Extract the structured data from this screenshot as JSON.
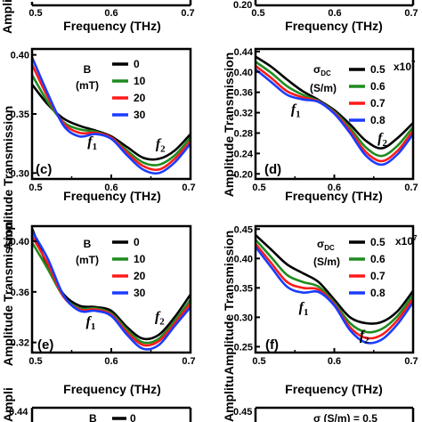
{
  "colors": {
    "black": "#000000",
    "green": "#1e8c1e",
    "red": "#ff1a1a",
    "blue": "#1a3cff"
  },
  "labels": {
    "freq_xlabel": "Frequency (THz)",
    "amp_ylabel": "Amplitude Transmission",
    "amp_ylabel_partial": "Ampli"
  },
  "chart_data": [
    {
      "panel": "top-left (cropped)",
      "type": "line",
      "xlabel": "Frequency (THz)",
      "ylabel": "Ampli",
      "xticks": [
        "0.5",
        "0.6",
        "0.7"
      ],
      "xlim": [
        0.5,
        0.7
      ]
    },
    {
      "panel": "top-right (cropped)",
      "type": "line",
      "xlabel": "Frequency (THz)",
      "ylabel": "",
      "xticks": [
        "0.5",
        "0.6",
        "0.7"
      ],
      "xlim": [
        0.5,
        0.7
      ],
      "ytick_partial": "0.20"
    },
    {
      "panel": "(c)",
      "type": "line",
      "xlabel": "Frequency (THz)",
      "ylabel": "Amplitude Transmission",
      "xticks": [
        "0.5",
        "0.6",
        "0.7"
      ],
      "yticks": [
        "0.30",
        "0.35",
        "0.40"
      ],
      "xlim": [
        0.5,
        0.7
      ],
      "ylim": [
        0.295,
        0.405
      ],
      "legend_title": [
        "B",
        "(mT)"
      ],
      "annotations": [
        {
          "text": "f",
          "sub": "1",
          "x": 0.57,
          "y": 0.323
        },
        {
          "text": "f",
          "sub": "2",
          "x": 0.656,
          "y": 0.321
        }
      ],
      "series": [
        {
          "name": "0",
          "color": "#000000",
          "x": [
            0.5,
            0.52,
            0.54,
            0.56,
            0.58,
            0.6,
            0.62,
            0.64,
            0.66,
            0.68,
            0.7
          ],
          "y": [
            0.375,
            0.358,
            0.346,
            0.34,
            0.336,
            0.331,
            0.322,
            0.313,
            0.312,
            0.319,
            0.333
          ]
        },
        {
          "name": "10",
          "color": "#1e8c1e",
          "x": [
            0.5,
            0.52,
            0.54,
            0.56,
            0.58,
            0.6,
            0.62,
            0.64,
            0.66,
            0.68,
            0.7
          ],
          "y": [
            0.383,
            0.36,
            0.343,
            0.337,
            0.335,
            0.33,
            0.319,
            0.309,
            0.307,
            0.315,
            0.33
          ]
        },
        {
          "name": "20",
          "color": "#ff1a1a",
          "x": [
            0.5,
            0.52,
            0.54,
            0.56,
            0.58,
            0.6,
            0.62,
            0.64,
            0.66,
            0.68,
            0.7
          ],
          "y": [
            0.392,
            0.364,
            0.342,
            0.334,
            0.334,
            0.33,
            0.317,
            0.306,
            0.303,
            0.312,
            0.327
          ]
        },
        {
          "name": "30",
          "color": "#1a3cff",
          "x": [
            0.5,
            0.52,
            0.54,
            0.56,
            0.58,
            0.6,
            0.62,
            0.64,
            0.66,
            0.68,
            0.7
          ],
          "y": [
            0.398,
            0.367,
            0.34,
            0.331,
            0.333,
            0.329,
            0.315,
            0.303,
            0.3,
            0.309,
            0.325
          ]
        }
      ]
    },
    {
      "panel": "(d)",
      "type": "line",
      "xlabel": "Frequency (THz)",
      "ylabel": "Amplitude Transmission",
      "xticks": [
        "0.5",
        "0.6",
        "0.7"
      ],
      "yticks": [
        "0.20",
        "0.24",
        "0.28",
        "0.32",
        "0.36",
        "0.40",
        "0.44"
      ],
      "xlim": [
        0.5,
        0.7
      ],
      "ylim": [
        0.19,
        0.445
      ],
      "legend_title": [
        "σ",
        "DC",
        "(S/m)"
      ],
      "legend_note": "x10",
      "legend_note_exp": "7",
      "annotations": [
        {
          "text": "f",
          "sub": "1",
          "x": 0.545,
          "y": 0.318
        },
        {
          "text": "f",
          "sub": "2",
          "x": 0.655,
          "y": 0.262
        }
      ],
      "series": [
        {
          "name": "0.5",
          "color": "#000000",
          "x": [
            0.5,
            0.52,
            0.54,
            0.56,
            0.58,
            0.6,
            0.62,
            0.64,
            0.66,
            0.68,
            0.7
          ],
          "y": [
            0.43,
            0.41,
            0.385,
            0.362,
            0.345,
            0.325,
            0.297,
            0.265,
            0.25,
            0.27,
            0.3
          ]
        },
        {
          "name": "0.6",
          "color": "#1e8c1e",
          "x": [
            0.5,
            0.52,
            0.54,
            0.56,
            0.58,
            0.6,
            0.62,
            0.64,
            0.66,
            0.68,
            0.7
          ],
          "y": [
            0.42,
            0.398,
            0.372,
            0.355,
            0.343,
            0.322,
            0.29,
            0.252,
            0.235,
            0.255,
            0.292
          ]
        },
        {
          "name": "0.7",
          "color": "#ff1a1a",
          "x": [
            0.5,
            0.52,
            0.54,
            0.56,
            0.58,
            0.6,
            0.62,
            0.64,
            0.66,
            0.68,
            0.7
          ],
          "y": [
            0.412,
            0.388,
            0.362,
            0.35,
            0.342,
            0.32,
            0.285,
            0.243,
            0.225,
            0.245,
            0.285
          ]
        },
        {
          "name": "0.8",
          "color": "#1a3cff",
          "x": [
            0.5,
            0.52,
            0.54,
            0.56,
            0.58,
            0.6,
            0.62,
            0.64,
            0.66,
            0.68,
            0.7
          ],
          "y": [
            0.405,
            0.38,
            0.355,
            0.346,
            0.341,
            0.318,
            0.28,
            0.236,
            0.218,
            0.238,
            0.278
          ]
        }
      ]
    },
    {
      "panel": "(e)",
      "type": "line",
      "xlabel": "Frequency (THz)",
      "ylabel": "Amplitude Transmission",
      "xticks": [
        "0.5",
        "0.6",
        "0.7"
      ],
      "yticks": [
        "0.32",
        "0.36",
        "0.40"
      ],
      "xlim": [
        0.5,
        0.7
      ],
      "ylim": [
        0.312,
        0.412
      ],
      "legend_title": [
        "B",
        "(mT)"
      ],
      "annotations": [
        {
          "text": "f",
          "sub": "1",
          "x": 0.568,
          "y": 0.333
        },
        {
          "text": "f",
          "sub": "2",
          "x": 0.655,
          "y": 0.337
        }
      ],
      "series": [
        {
          "name": "0",
          "color": "#000000",
          "x": [
            0.5,
            0.52,
            0.54,
            0.56,
            0.58,
            0.6,
            0.62,
            0.64,
            0.66,
            0.68,
            0.7
          ],
          "y": [
            0.41,
            0.38,
            0.358,
            0.349,
            0.348,
            0.345,
            0.332,
            0.323,
            0.326,
            0.34,
            0.358
          ]
        },
        {
          "name": "10",
          "color": "#1e8c1e",
          "x": [
            0.5,
            0.52,
            0.54,
            0.56,
            0.58,
            0.6,
            0.62,
            0.64,
            0.66,
            0.68,
            0.7
          ],
          "y": [
            0.399,
            0.378,
            0.356,
            0.347,
            0.347,
            0.343,
            0.33,
            0.32,
            0.323,
            0.337,
            0.354
          ]
        },
        {
          "name": "20",
          "color": "#ff1a1a",
          "x": [
            0.5,
            0.52,
            0.54,
            0.56,
            0.58,
            0.6,
            0.62,
            0.64,
            0.66,
            0.68,
            0.7
          ],
          "y": [
            0.404,
            0.382,
            0.356,
            0.346,
            0.346,
            0.342,
            0.328,
            0.318,
            0.321,
            0.335,
            0.351
          ]
        },
        {
          "name": "30",
          "color": "#1a3cff",
          "x": [
            0.5,
            0.52,
            0.54,
            0.56,
            0.58,
            0.6,
            0.62,
            0.64,
            0.66,
            0.68,
            0.7
          ],
          "y": [
            0.408,
            0.386,
            0.357,
            0.345,
            0.345,
            0.341,
            0.326,
            0.315,
            0.318,
            0.333,
            0.348
          ]
        }
      ]
    },
    {
      "panel": "(f)",
      "type": "line",
      "xlabel": "Frequency (THz)",
      "ylabel": "Amplitude Transmission",
      "xticks": [
        "0.5",
        "0.6",
        "0.7"
      ],
      "yticks": [
        "0.25",
        "0.30",
        "0.35",
        "0.40",
        "0.45"
      ],
      "xlim": [
        0.5,
        0.7
      ],
      "ylim": [
        0.24,
        0.455
      ],
      "legend_title": [
        "σ",
        "DC",
        "(S/m)"
      ],
      "legend_note": "x10",
      "legend_note_exp": "7",
      "annotations": [
        {
          "text": "f",
          "sub": "1",
          "x": 0.555,
          "y": 0.31
        },
        {
          "text": "f",
          "sub": "2",
          "x": 0.632,
          "y": 0.262
        }
      ],
      "series": [
        {
          "name": "0.5",
          "color": "#000000",
          "x": [
            0.5,
            0.52,
            0.54,
            0.56,
            0.58,
            0.6,
            0.62,
            0.64,
            0.66,
            0.68,
            0.7
          ],
          "y": [
            0.44,
            0.415,
            0.39,
            0.375,
            0.36,
            0.33,
            0.3,
            0.29,
            0.292,
            0.31,
            0.345
          ]
        },
        {
          "name": "0.6",
          "color": "#1e8c1e",
          "x": [
            0.5,
            0.52,
            0.54,
            0.56,
            0.58,
            0.6,
            0.62,
            0.64,
            0.66,
            0.68,
            0.7
          ],
          "y": [
            0.432,
            0.402,
            0.372,
            0.36,
            0.352,
            0.325,
            0.29,
            0.275,
            0.28,
            0.302,
            0.338
          ]
        },
        {
          "name": "0.7",
          "color": "#ff1a1a",
          "x": [
            0.5,
            0.52,
            0.54,
            0.56,
            0.58,
            0.6,
            0.62,
            0.64,
            0.66,
            0.68,
            0.7
          ],
          "y": [
            0.425,
            0.392,
            0.36,
            0.35,
            0.347,
            0.322,
            0.283,
            0.265,
            0.27,
            0.295,
            0.332
          ]
        },
        {
          "name": "0.8",
          "color": "#1a3cff",
          "x": [
            0.5,
            0.52,
            0.54,
            0.56,
            0.58,
            0.6,
            0.62,
            0.64,
            0.66,
            0.68,
            0.7
          ],
          "y": [
            0.42,
            0.385,
            0.352,
            0.342,
            0.343,
            0.32,
            0.278,
            0.257,
            0.262,
            0.288,
            0.326
          ]
        }
      ]
    },
    {
      "panel": "bottom-left (cropped)",
      "type": "line",
      "ytick_partial": "0.44",
      "legend_title_partial": "B",
      "first_entry": "0",
      "ylabel_partial": "Ampli"
    },
    {
      "panel": "bottom-right (cropped)",
      "type": "line",
      "ytick_partial": "0.45",
      "legend_partial": "σ (S/m) = 0.5",
      "ylabel_partial": "Amplitu"
    }
  ]
}
